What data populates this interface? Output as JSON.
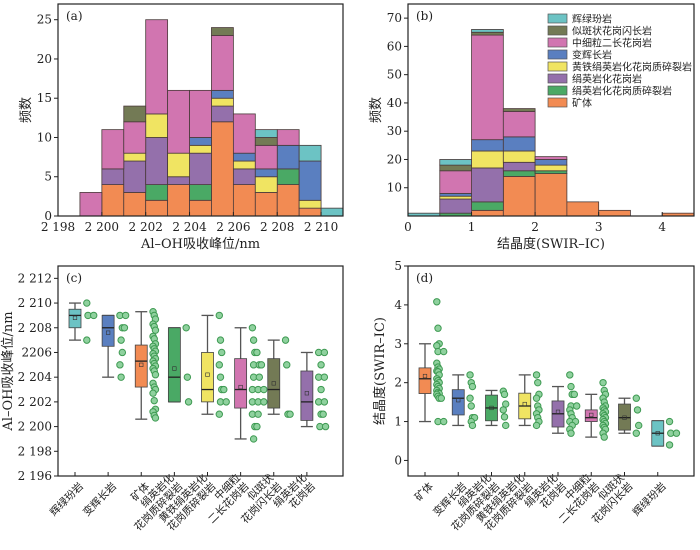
{
  "colors": {
    "辉绿玢岩": "#6cc3c4",
    "似斑状花岗闪长岩": "#737a55",
    "中细粒二长花岗岩": "#d175b0",
    "变辉长岩": "#5a7fc0",
    "黄铁绢英岩化花岗质碎裂岩": "#f0e462",
    "绢英岩化花岗岩": "#9470ab",
    "绢英岩化花岗质碎裂岩": "#4aa965",
    "矿体": "#f28b53"
  },
  "chart_data": [
    {
      "id": "a",
      "panel_label": "(a)",
      "type": "bar",
      "stacked": true,
      "histogram": true,
      "xlabel": "Al–OH吸收峰位/nm",
      "ylabel": "频数",
      "xlim": [
        2198,
        2211
      ],
      "ylim": [
        0,
        27
      ],
      "xticks": [
        2198,
        2200,
        2202,
        2204,
        2206,
        2208,
        2210
      ],
      "xtick_labels": [
        "2 198",
        "2 200",
        "2 202",
        "2 204",
        "2 206",
        "2 208",
        "2 210"
      ],
      "yticks": [
        0,
        5,
        10,
        15,
        20,
        25
      ],
      "bin_edges": [
        2199,
        2200,
        2201,
        2202,
        2203,
        2204,
        2205,
        2206,
        2207,
        2208,
        2209,
        2210,
        2211
      ],
      "series": [
        {
          "name": "矿体",
          "values": [
            0,
            4,
            3,
            2,
            4,
            2,
            12,
            4,
            3,
            4,
            1,
            0
          ]
        },
        {
          "name": "绢英岩化花岗质碎裂岩",
          "values": [
            0,
            0,
            0,
            2,
            0,
            2,
            0,
            0,
            0,
            2,
            0,
            0
          ]
        },
        {
          "name": "绢英岩化花岗岩",
          "values": [
            0,
            2,
            4,
            6,
            1,
            4,
            2,
            2,
            0,
            0,
            0,
            0
          ]
        },
        {
          "name": "黄铁绢英岩化花岗质碎裂岩",
          "values": [
            0,
            0,
            1,
            3,
            3,
            1,
            1,
            1,
            2,
            0,
            1,
            0
          ]
        },
        {
          "name": "变辉长岩",
          "values": [
            0,
            0,
            0,
            0,
            0,
            1,
            1,
            1,
            1,
            3,
            5,
            0
          ]
        },
        {
          "name": "中细粒二长花岗岩",
          "values": [
            3,
            5,
            4,
            12,
            8,
            6,
            7,
            5,
            3,
            2,
            0,
            0
          ]
        },
        {
          "name": "似斑状花岗闪长岩",
          "values": [
            0,
            0,
            2,
            0,
            0,
            0,
            1,
            0,
            1,
            0,
            0,
            0
          ]
        },
        {
          "name": "辉绿玢岩",
          "values": [
            0,
            0,
            0,
            0,
            0,
            0,
            0,
            0,
            1,
            0,
            2,
            1
          ]
        }
      ]
    },
    {
      "id": "b",
      "panel_label": "(b)",
      "type": "bar",
      "stacked": true,
      "histogram": true,
      "xlabel": "结晶度(SWIR–IC)",
      "ylabel": "频数",
      "xlim": [
        0,
        4.5
      ],
      "ylim": [
        0,
        75
      ],
      "xticks": [
        0,
        1,
        2,
        3,
        4
      ],
      "yticks": [
        10,
        20,
        30,
        40,
        50,
        60,
        70
      ],
      "bin_edges": [
        0,
        0.5,
        1.0,
        1.5,
        2.0,
        2.5,
        3.0,
        3.5,
        4.0,
        4.5
      ],
      "series": [
        {
          "name": "矿体",
          "values": [
            0,
            0,
            2,
            14,
            15,
            5,
            2,
            0,
            1
          ]
        },
        {
          "name": "绢英岩化花岗质碎裂岩",
          "values": [
            0,
            1,
            3,
            2,
            1,
            0,
            0,
            0,
            0
          ]
        },
        {
          "name": "绢英岩化花岗岩",
          "values": [
            0,
            5,
            12,
            3,
            0,
            0,
            0,
            0,
            0
          ]
        },
        {
          "name": "黄铁绢英岩化花岗质碎裂岩",
          "values": [
            0,
            1,
            6,
            4,
            2,
            0,
            0,
            0,
            0
          ]
        },
        {
          "name": "变辉长岩",
          "values": [
            0,
            1,
            4,
            5,
            2,
            0,
            0,
            0,
            0
          ]
        },
        {
          "name": "中细粒二长花岗岩",
          "values": [
            0,
            8,
            37,
            9,
            1,
            0,
            0,
            0,
            0
          ]
        },
        {
          "name": "似斑状花岗闪长岩",
          "values": [
            0,
            2,
            1,
            1,
            0,
            0,
            0,
            0,
            0
          ]
        },
        {
          "name": "辉绿玢岩",
          "values": [
            1,
            2,
            1,
            0,
            0,
            0,
            0,
            0,
            0
          ]
        }
      ],
      "legend": {
        "placement": "top-right",
        "entries": [
          "辉绿玢岩",
          "似斑状花岗闪长岩",
          "中细粒二长花岗岩",
          "变辉长岩",
          "黄铁绢英岩化花岗质碎裂岩",
          "绢英岩化花岗岩",
          "绢英岩化花岗质碎裂岩",
          "矿体"
        ]
      }
    },
    {
      "id": "c",
      "panel_label": "(c)",
      "type": "box",
      "ylabel": "Al–OH吸收峰位/nm",
      "ylim": [
        2196,
        2213
      ],
      "yticks": [
        2196,
        2198,
        2200,
        2202,
        2204,
        2206,
        2208,
        2210,
        2212
      ],
      "ytick_labels": [
        "2 196",
        "2 198",
        "2 200",
        "2 202",
        "2 204",
        "2206",
        "2 208",
        "2 210",
        "2 212"
      ],
      "categories": [
        {
          "key": "辉绿玢岩",
          "label": [
            "辉绿玢岩"
          ],
          "whisker": [
            2207,
            2210
          ],
          "q1": 2208,
          "median": 2209,
          "q3": 2209.5,
          "mean": 2208.8,
          "points": [
            2210,
            2209,
            2209,
            2207
          ]
        },
        {
          "key": "变辉长岩",
          "label": [
            "变辉长岩"
          ],
          "whisker": [
            2204,
            2209
          ],
          "q1": 2206.5,
          "median": 2208,
          "q3": 2209,
          "mean": 2207.6,
          "points": [
            2209,
            2209,
            2208,
            2208,
            2207,
            2206,
            2205,
            2204
          ]
        },
        {
          "key": "矿体",
          "label": [
            "矿体"
          ],
          "whisker": [
            2200.6,
            2209.3
          ],
          "q1": 2203.2,
          "median": 2205.3,
          "q3": 2206.6,
          "mean": 2205,
          "points": [
            2209.3,
            2209,
            2208.7,
            2208.3,
            2208.1,
            2207.8,
            2207.3,
            2207.1,
            2206.7,
            2206.5,
            2206.3,
            2206.1,
            2205.9,
            2205.7,
            2205.5,
            2205.3,
            2205.1,
            2204.9,
            2204.7,
            2204.5,
            2204.2,
            2203.5,
            2203.2,
            2203,
            2202.7,
            2202.1,
            2201.4,
            2201.2,
            2200.9,
            2200.7
          ]
        },
        {
          "key": "绢英岩化花岗质碎裂岩",
          "label": [
            "绢英岩化",
            "花岗质碎裂岩"
          ],
          "whisker": [
            2202,
            2208
          ],
          "q1": 2202,
          "median": 2204,
          "q3": 2208,
          "mean": 2204.7,
          "points": [
            2208,
            2204,
            2202
          ]
        },
        {
          "key": "黄铁绢英岩化花岗质碎裂岩",
          "label": [
            "黄铁绢英岩化",
            "花岗质碎裂岩"
          ],
          "whisker": [
            2201,
            2209
          ],
          "q1": 2202,
          "median": 2203,
          "q3": 2206,
          "mean": 2204.2,
          "points": [
            2209,
            2207,
            2206,
            2205,
            2204,
            2203,
            2203,
            2202,
            2202,
            2201
          ]
        },
        {
          "key": "中细粒二长花岗岩",
          "label": [
            "中细粒",
            "二长花岗岩"
          ],
          "whisker": [
            2199,
            2208
          ],
          "q1": 2201.5,
          "median": 2203,
          "q3": 2205.5,
          "mean": 2203.2,
          "points": [
            2208,
            2207,
            2206,
            2206,
            2205,
            2205,
            2205,
            2204,
            2204,
            2203,
            2203,
            2203,
            2202,
            2202,
            2202,
            2201,
            2201,
            2200,
            2200,
            2199
          ]
        },
        {
          "key": "似斑状花岗闪长岩",
          "label": [
            "似斑状",
            "花岗闪长岩"
          ],
          "whisker": [
            2201,
            2207
          ],
          "q1": 2201.5,
          "median": 2203,
          "q3": 2205.5,
          "mean": 2203.5,
          "points": [
            2207,
            2205,
            2201,
            2201
          ]
        },
        {
          "key": "绢英岩化花岗岩",
          "label": [
            "绢英岩化",
            "花岗岩"
          ],
          "whisker": [
            2200,
            2206
          ],
          "q1": 2200.5,
          "median": 2202,
          "q3": 2204.5,
          "mean": 2202.7,
          "points": [
            2206,
            2206,
            2205,
            2204,
            2204,
            2203,
            2202,
            2202,
            2201,
            2201,
            2200,
            2200
          ]
        }
      ]
    },
    {
      "id": "d",
      "panel_label": "(d)",
      "type": "box",
      "ylabel": "结晶度(SWIR–IC)",
      "ylim": [
        -0.4,
        5
      ],
      "yticks": [
        0,
        1,
        2,
        3,
        4,
        5
      ],
      "categories": [
        {
          "key": "矿体",
          "label": [
            "矿体"
          ],
          "whisker": [
            1.0,
            3.0
          ],
          "q1": 1.72,
          "median": 2.1,
          "q3": 2.38,
          "mean": 2.17,
          "points": [
            4.08,
            3.4,
            3.0,
            2.95,
            2.8,
            2.8,
            2.5,
            2.4,
            2.35,
            2.3,
            2.28,
            2.2,
            2.1,
            2.05,
            2.0,
            1.95,
            1.9,
            1.85,
            1.8,
            1.75,
            1.72,
            1.7,
            1.65,
            1.6,
            1.6,
            1.0,
            1.0
          ]
        },
        {
          "key": "变辉长岩",
          "label": [
            "变辉长岩"
          ],
          "whisker": [
            0.9,
            2.2
          ],
          "q1": 1.17,
          "median": 1.6,
          "q3": 1.82,
          "mean": 1.55,
          "points": [
            2.2,
            2.0,
            1.9,
            1.6,
            1.4,
            1.1,
            1.1,
            1.0,
            0.9
          ]
        },
        {
          "key": "绢英岩化花岗质碎裂岩",
          "label": [
            "绢英岩化",
            "花岗质碎裂岩"
          ],
          "whisker": [
            0.9,
            1.8
          ],
          "q1": 1.02,
          "median": 1.35,
          "q3": 1.68,
          "mean": 1.35,
          "points": [
            1.78,
            1.7,
            1.45,
            1.3,
            1.12,
            0.9
          ]
        },
        {
          "key": "黄铁绢英岩化花岗质碎裂岩",
          "label": [
            "黄铁绢英岩化",
            "花岗质碎裂岩"
          ],
          "whisker": [
            0.9,
            2.2
          ],
          "q1": 1.07,
          "median": 1.4,
          "q3": 1.73,
          "mean": 1.45,
          "points": [
            2.2,
            2.0,
            1.7,
            1.6,
            1.4,
            1.3,
            1.2,
            1.1,
            1.0,
            0.9
          ]
        },
        {
          "key": "绢英岩化花岗岩",
          "label": [
            "绢英岩化",
            "花岗岩"
          ],
          "whisker": [
            0.7,
            1.9
          ],
          "q1": 0.86,
          "median": 1.2,
          "q3": 1.53,
          "mean": 1.25,
          "points": [
            2.2,
            1.9,
            1.7,
            1.7,
            1.4,
            1.4,
            1.3,
            1.2,
            1.1,
            1.0,
            1.0,
            0.9,
            0.8,
            0.7
          ]
        },
        {
          "key": "中细粒二长花岗岩",
          "label": [
            "中细粒",
            "二长花岗岩"
          ],
          "whisker": [
            0.6,
            1.7
          ],
          "q1": 1.0,
          "median": 1.1,
          "q3": 1.3,
          "mean": 1.17,
          "points": [
            2.0,
            1.8,
            1.7,
            1.6,
            1.5,
            1.4,
            1.35,
            1.3,
            1.25,
            1.2,
            1.15,
            1.1,
            1.05,
            1.0,
            0.95,
            0.9,
            0.85,
            0.8,
            0.7,
            0.6
          ]
        },
        {
          "key": "似斑状花岗闪长岩",
          "label": [
            "似斑状",
            "花岗闪长岩"
          ],
          "whisker": [
            0.7,
            1.6
          ],
          "q1": 0.78,
          "median": 1.1,
          "q3": 1.45,
          "mean": 1.1,
          "points": [
            1.6,
            1.3,
            0.9,
            0.7
          ]
        },
        {
          "key": "辉绿玢岩",
          "label": [
            "辉绿玢岩"
          ],
          "whisker": [
            0.37,
            1.02
          ],
          "q1": 0.37,
          "median": 0.7,
          "q3": 1.02,
          "mean": 0.7,
          "points": [
            1.0,
            0.7,
            0.7,
            0.4
          ]
        }
      ]
    }
  ]
}
